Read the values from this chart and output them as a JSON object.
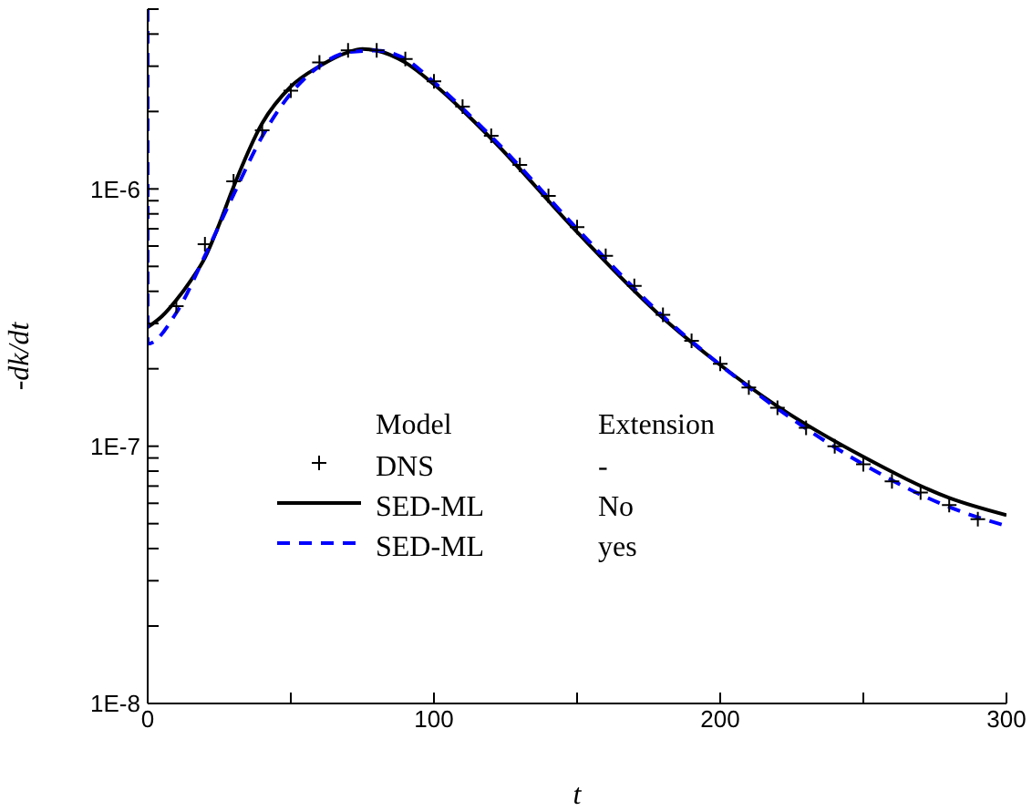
{
  "chart_data": {
    "type": "line",
    "xlabel": "t",
    "ylabel": "-dk/dt",
    "log": "y",
    "xlim": [
      0,
      300
    ],
    "xticks": [
      0,
      {
        "value": 50,
        "label": null
      },
      100,
      {
        "value": 150,
        "label": null
      },
      200,
      {
        "value": 250,
        "label": null
      },
      300
    ],
    "ylim": [
      1e-08,
      5e-06
    ],
    "yticks": [
      {
        "value": 1e-08,
        "label": "1E-8"
      },
      {
        "value": 2e-08,
        "label": null
      },
      {
        "value": 3e-08,
        "label": null
      },
      {
        "value": 4e-08,
        "label": null
      },
      {
        "value": 5e-08,
        "label": null
      },
      {
        "value": 6e-08,
        "label": null
      },
      {
        "value": 7e-08,
        "label": null
      },
      {
        "value": 8e-08,
        "label": null
      },
      {
        "value": 9e-08,
        "label": null
      },
      {
        "value": 1e-07,
        "label": "1E-7"
      },
      {
        "value": 2e-07,
        "label": null
      },
      {
        "value": 3e-07,
        "label": null
      },
      {
        "value": 4e-07,
        "label": null
      },
      {
        "value": 5e-07,
        "label": null
      },
      {
        "value": 6e-07,
        "label": null
      },
      {
        "value": 7e-07,
        "label": null
      },
      {
        "value": 8e-07,
        "label": null
      },
      {
        "value": 9e-07,
        "label": null
      },
      {
        "value": 1e-06,
        "label": "1E-6"
      },
      {
        "value": 2e-06,
        "label": null
      },
      {
        "value": 3e-06,
        "label": null
      },
      {
        "value": 4e-06,
        "label": null
      },
      {
        "value": 5e-06,
        "label": null
      }
    ],
    "grid": false,
    "legend": "bottom",
    "legend_title": "Model",
    "annotations": [
      "Extension",
      "-",
      "No",
      "yes"
    ],
    "series": [
      {
        "name": "DNS",
        "type": "scatter",
        "marker": "cross",
        "color": "#000000",
        "x": [
          10,
          20,
          30,
          40,
          50,
          60,
          70,
          80,
          90,
          100,
          110,
          120,
          130,
          140,
          150,
          160,
          170,
          180,
          190,
          200,
          210,
          220,
          230,
          240,
          250,
          260,
          270,
          280,
          290
        ],
        "values": [
          3.5e-07,
          6.1e-07,
          1.07e-06,
          1.69e-06,
          2.41e-06,
          3.1e-06,
          3.46e-06,
          3.46e-06,
          3.2e-06,
          2.62e-06,
          2.09e-06,
          1.61e-06,
          1.24e-06,
          9.4e-07,
          7.1e-07,
          5.5e-07,
          4.2e-07,
          3.24e-07,
          2.57e-07,
          2.09e-07,
          1.69e-07,
          1.41e-07,
          1.18e-07,
          1e-07,
          8.5e-08,
          7.3e-08,
          6.6e-08,
          5.9e-08,
          5.2e-08
        ]
      },
      {
        "name": "SED-ML",
        "marker": "none",
        "line_style": "solid",
        "color": "#000000",
        "x": [
          0,
          5,
          10,
          15,
          20,
          25,
          30,
          40,
          50,
          60,
          70,
          75,
          80,
          90,
          100,
          120,
          150,
          180,
          200,
          220,
          250,
          280,
          300
        ],
        "values": [
          2.9e-07,
          3.2e-07,
          3.7e-07,
          4.4e-07,
          5.4e-07,
          7.3e-07,
          1.02e-06,
          1.8e-06,
          2.5e-06,
          3e-06,
          3.4e-06,
          3.5e-06,
          3.45e-06,
          3.1e-06,
          2.55e-06,
          1.57e-06,
          6.8e-07,
          3.15e-07,
          2.07e-07,
          1.43e-07,
          9.1e-08,
          6.3e-08,
          5.4e-08
        ]
      },
      {
        "name": "SED-ML",
        "marker": "none",
        "line_style": "dashed",
        "color": "#0000ff",
        "x": [
          0,
          0,
          10,
          20,
          30,
          40,
          50,
          60,
          70,
          80,
          90,
          100,
          120,
          150,
          180,
          200,
          220,
          250,
          280,
          300
        ],
        "values": [
          5e-06,
          2.5e-07,
          3.3e-07,
          5.5e-07,
          9.5e-07,
          1.6e-06,
          2.35e-06,
          3e-06,
          3.4e-06,
          3.45e-06,
          3.2e-06,
          2.6e-06,
          1.6e-06,
          7e-07,
          3.2e-07,
          2.07e-07,
          1.4e-07,
          8.5e-08,
          5.8e-08,
          4.9e-08
        ]
      }
    ]
  }
}
